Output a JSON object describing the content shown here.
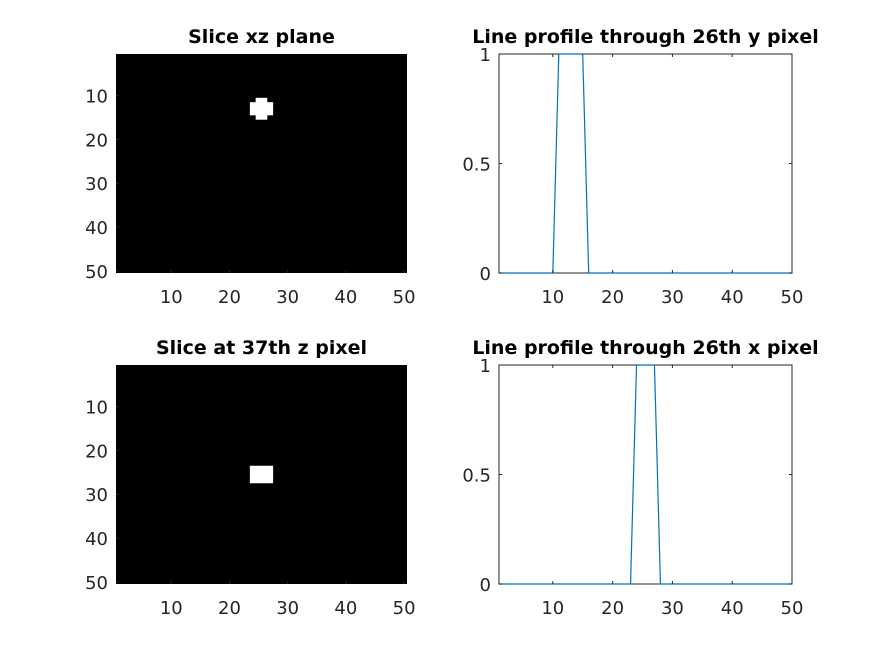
{
  "figure": {
    "background": "#ffffff",
    "line_color": "#0072BD",
    "axis_color": "#262626"
  },
  "chart_data": [
    {
      "type": "heatmap",
      "title": "Slice xz plane",
      "xlim": [
        0.5,
        50.5
      ],
      "ylim": [
        0.5,
        50.5
      ],
      "y_reversed": true,
      "xticks": [
        10,
        20,
        30,
        40,
        50
      ],
      "yticks": [
        10,
        20,
        30,
        40,
        50
      ],
      "background_value": 0,
      "background_color": "#000000",
      "foreground_color": "#ffffff",
      "bright_cells": [
        {
          "x": [
            25,
            26
          ],
          "y": [
            11,
            15
          ]
        },
        {
          "x": [
            24,
            27
          ],
          "y": [
            12,
            14
          ]
        }
      ]
    },
    {
      "type": "line",
      "title": "Line profile through 26th y pixel",
      "xlim": [
        1,
        50
      ],
      "ylim": [
        0,
        1
      ],
      "xticks": [
        10,
        20,
        30,
        40,
        50
      ],
      "yticks": [
        0,
        0.5,
        1
      ],
      "ytick_labels": [
        "0",
        "0.5",
        "1"
      ],
      "series": [
        {
          "points": [
            [
              1,
              0
            ],
            [
              10,
              0
            ],
            [
              11,
              1
            ],
            [
              15,
              1
            ],
            [
              16,
              0
            ],
            [
              50,
              0
            ]
          ]
        }
      ]
    },
    {
      "type": "heatmap",
      "title": "Slice at 37th z pixel",
      "xlim": [
        0.5,
        50.5
      ],
      "ylim": [
        0.5,
        50.5
      ],
      "y_reversed": true,
      "xticks": [
        10,
        20,
        30,
        40,
        50
      ],
      "yticks": [
        10,
        20,
        30,
        40,
        50
      ],
      "background_value": 0,
      "background_color": "#000000",
      "foreground_color": "#ffffff",
      "bright_cells": [
        {
          "x": [
            24,
            27
          ],
          "y": [
            24,
            27
          ]
        }
      ]
    },
    {
      "type": "line",
      "title": "Line profile through 26th x pixel",
      "xlim": [
        1,
        50
      ],
      "ylim": [
        0,
        1
      ],
      "xticks": [
        10,
        20,
        30,
        40,
        50
      ],
      "yticks": [
        0,
        0.5,
        1
      ],
      "ytick_labels": [
        "0",
        "0.5",
        "1"
      ],
      "series": [
        {
          "points": [
            [
              1,
              0
            ],
            [
              23,
              0
            ],
            [
              24,
              1
            ],
            [
              27,
              1
            ],
            [
              28,
              0
            ],
            [
              50,
              0
            ]
          ]
        }
      ]
    }
  ]
}
